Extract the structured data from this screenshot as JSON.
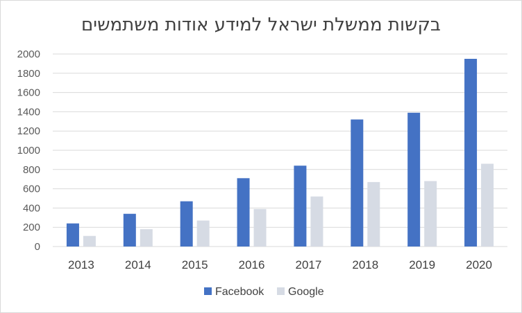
{
  "chart_data": {
    "type": "bar",
    "title": "בקשות ממשלת ישראל למידע אודות משתמשים",
    "categories": [
      "2013",
      "2014",
      "2015",
      "2016",
      "2017",
      "2018",
      "2019",
      "2020"
    ],
    "series": [
      {
        "name": "Facebook",
        "color": "#4472c4",
        "values": [
          240,
          340,
          470,
          710,
          840,
          1320,
          1390,
          1950
        ]
      },
      {
        "name": "Google",
        "color": "#d6dbe4",
        "values": [
          110,
          180,
          270,
          390,
          520,
          670,
          680,
          860
        ]
      }
    ],
    "yticks": [
      0,
      200,
      400,
      600,
      800,
      1000,
      1200,
      1400,
      1600,
      1800,
      2000
    ],
    "ylim": [
      0,
      2000
    ],
    "grid": true,
    "legend": "bottom"
  }
}
